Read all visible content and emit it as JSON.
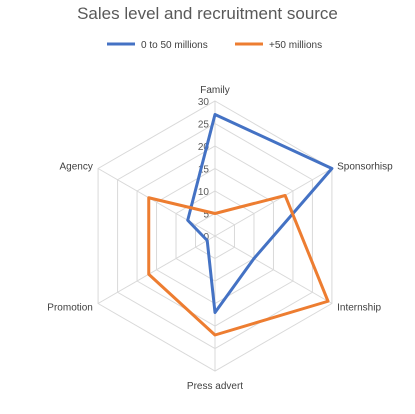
{
  "chart_data": {
    "type": "radar",
    "title": "Sales level and recruitment source",
    "categories": [
      "Family",
      "Sponsorhisp",
      "Internship",
      "Press advert",
      "Promotion",
      "Agency"
    ],
    "r_ticks": [
      "0",
      "5",
      "10",
      "15",
      "20",
      "25",
      "30"
    ],
    "r_range": [
      0,
      30
    ],
    "grid": true,
    "legend_position": "top",
    "series": [
      {
        "name": "0 to 50  millions",
        "color": "#4472c4",
        "values": [
          27,
          30,
          10,
          17,
          2,
          7
        ]
      },
      {
        "name": "+50 millions",
        "color": "#ed7d31",
        "values": [
          5,
          18,
          29,
          22,
          17,
          17
        ]
      }
    ]
  }
}
